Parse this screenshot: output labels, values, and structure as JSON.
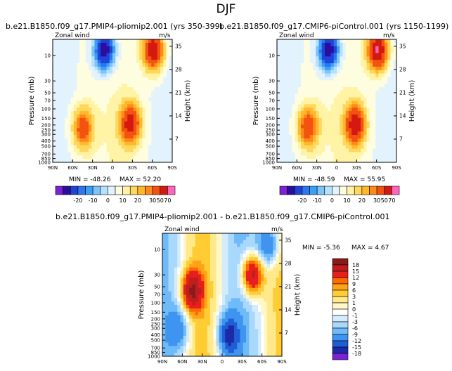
{
  "figure_title": "DJF",
  "colors": {
    "full_levels": [
      "#7b22d6",
      "#2a0f9e",
      "#1f45d6",
      "#2e75f0",
      "#3aa0f5",
      "#7cc4fa",
      "#b6e0fb",
      "#e2f3fd",
      "#fffde0",
      "#fff3a6",
      "#ffd75a",
      "#ffb82e",
      "#ff8a1a",
      "#f25410",
      "#d41a10",
      "#ff66bb"
    ],
    "diff_levels": [
      "#8b1a1a",
      "#bf1e1e",
      "#e61e1e",
      "#ff6a00",
      "#ffa21a",
      "#ffcc33",
      "#ffe98a",
      "#fff7c8",
      "#ffffff",
      "#d2ecfd",
      "#a8d8fb",
      "#6fbaf8",
      "#3f94f0",
      "#1f5fd6",
      "#1c2aa8",
      "#7b22d6"
    ]
  },
  "chart_data": [
    {
      "type": "heatmap",
      "panel": "top-left",
      "title": "b.e21.B1850.f09_g17.PMIP4-pliomip2.001 (yrs 350-399)",
      "variable": "Zonal wind",
      "units": "m/s",
      "ylabel": "Pressure (mb)",
      "ylabel_right": "Height (km)",
      "x_ticks": [
        "90N",
        "60N",
        "30N",
        "0",
        "30S",
        "60S",
        "90S"
      ],
      "y_ticks": [
        "10",
        "30",
        "50",
        "70",
        "100",
        "150",
        "200",
        "250",
        "300",
        "400",
        "500",
        "700",
        "850",
        "1000"
      ],
      "y_ticks_right": [
        "35",
        "28",
        "21",
        "14",
        "7"
      ],
      "min_text": "MIN = -48.26",
      "max_text": "MAX = 52.20",
      "min": -48.26,
      "max": 52.2,
      "colorbar_labels": [
        "-20",
        "-10",
        "0",
        "10",
        "20",
        "30",
        "50",
        "70"
      ],
      "features": [
        {
          "lat": -62,
          "p": 8,
          "value": 45
        },
        {
          "lat": -27,
          "p": 190,
          "value": 38
        },
        {
          "lat": 45,
          "p": 230,
          "value": 30
        },
        {
          "lat": 12,
          "p": 8,
          "value": -45
        }
      ]
    },
    {
      "type": "heatmap",
      "panel": "top-right",
      "title": "b.e21.B1850.f09_g17.CMIP6-piControl.001 (yrs 1150-1199)",
      "variable": "Zonal wind",
      "units": "m/s",
      "ylabel": "Pressure (mb)",
      "ylabel_right": "Height (km)",
      "x_ticks": [
        "90N",
        "60N",
        "30N",
        "0",
        "30S",
        "60S",
        "90S"
      ],
      "y_ticks": [
        "10",
        "30",
        "50",
        "70",
        "100",
        "150",
        "200",
        "250",
        "300",
        "400",
        "500",
        "700",
        "850",
        "1000"
      ],
      "y_ticks_right": [
        "35",
        "28",
        "21",
        "14",
        "7"
      ],
      "min_text": "MIN = -48.59",
      "max_text": "MAX = 55.95",
      "min": -48.59,
      "max": 55.95,
      "colorbar_labels": [
        "-20",
        "-10",
        "0",
        "10",
        "20",
        "30",
        "50",
        "70"
      ],
      "features": [
        {
          "lat": -62,
          "p": 8,
          "value": 48
        },
        {
          "lat": -28,
          "p": 200,
          "value": 40
        },
        {
          "lat": 44,
          "p": 220,
          "value": 32
        },
        {
          "lat": 12,
          "p": 8,
          "value": -45
        }
      ]
    },
    {
      "type": "heatmap",
      "panel": "bottom-difference",
      "title": "b.e21.B1850.f09_g17.PMIP4-pliomip2.001 - b.e21.B1850.f09_g17.CMIP6-piControl.001",
      "variable": "Zonal wind",
      "units": "m/s",
      "ylabel": "Pressure (mb)",
      "ylabel_right": "Height (km)",
      "x_ticks": [
        "90N",
        "60N",
        "30N",
        "0",
        "30S",
        "60S",
        "90S"
      ],
      "y_ticks": [
        "10",
        "30",
        "50",
        "70",
        "100",
        "150",
        "200",
        "250",
        "300",
        "400",
        "500",
        "700",
        "850",
        "1000"
      ],
      "y_ticks_right": [
        "35",
        "28",
        "21",
        "14",
        "7"
      ],
      "min_text": "MIN = -5.36",
      "max_text": "MAX = 4.67",
      "min": -5.36,
      "max": 4.67,
      "colorbar_labels": [
        "18",
        "15",
        "12",
        "9",
        "6",
        "3",
        "1",
        "0",
        "-1",
        "-3",
        "-6",
        "-9",
        "-12",
        "-15",
        "-18"
      ],
      "features": [
        {
          "lat": -45,
          "p": 30,
          "value": 4.5
        },
        {
          "lat": 45,
          "p": 60,
          "value": 4.0
        },
        {
          "lat": -10,
          "p": 400,
          "value": -3.5
        },
        {
          "lat": -70,
          "p": 8,
          "value": -3.0
        },
        {
          "lat": 65,
          "p": 300,
          "value": -2.0
        }
      ]
    }
  ]
}
